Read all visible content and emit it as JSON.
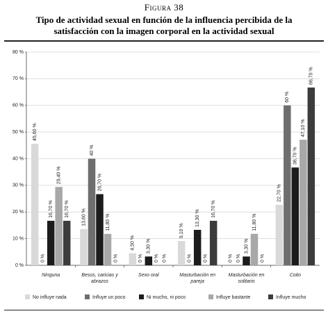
{
  "chart_data": {
    "type": "bar",
    "figure": "Figura 38",
    "title": "Tipo de actividad sexual en función de la influencia percibida de la satisfacción con la imagen corporal en la actividad sexual",
    "categories": [
      "Ninguna",
      "Besos, caricias y abrazos",
      "Sexo oral",
      "Masturbación en pareja",
      "Masturbación en solitario",
      "Coito"
    ],
    "series": [
      {
        "name": "No influye nada",
        "color": "#d9d9d9",
        "values": [
          45.6,
          13.6,
          4.5,
          9.1,
          0,
          22.7
        ],
        "value_labels": [
          "45,60 %",
          "13,60 %",
          "4,50 %",
          "9,10 %",
          "0 %",
          "22,70 %"
        ]
      },
      {
        "name": "Influye un poco",
        "color": "#6e6e6e",
        "values": [
          0,
          40,
          0,
          0,
          0,
          60
        ],
        "value_labels": [
          "0 %",
          "40 %",
          "0 %",
          "0 %",
          "0 %",
          "60 %"
        ]
      },
      {
        "name": "Ni mucho, ni poco",
        "color": "#1c1c1c",
        "values": [
          16.7,
          26.7,
          3.3,
          13.3,
          3.3,
          36.7
        ],
        "value_labels": [
          "16,70 %",
          "26,70 %",
          "3,30 %",
          "13,30 %",
          "3,30 %",
          "36,70 %"
        ]
      },
      {
        "name": "Influye bastante",
        "color": "#a8a8a8",
        "values": [
          29.4,
          11.8,
          0,
          0,
          11.8,
          47.1
        ],
        "value_labels": [
          "29,40 %",
          "11,80 %",
          "0 %",
          "0 %",
          "11,80 %",
          "47,10 %"
        ]
      },
      {
        "name": "Influye mucho",
        "color": "#3c3c3c",
        "values": [
          16.7,
          0,
          0,
          16.7,
          0,
          66.7
        ],
        "value_labels": [
          "16,70 %",
          "0 %",
          "0 %",
          "16,70 %",
          "0 %",
          "66,70 %"
        ]
      }
    ],
    "ylim": [
      0,
      80
    ],
    "yticks": [
      {
        "value": 0,
        "label": "0 %"
      },
      {
        "value": 10,
        "label": "10 %"
      },
      {
        "value": 20,
        "label": "20 %"
      },
      {
        "value": 30,
        "label": "30 %"
      },
      {
        "value": 40,
        "label": "40 %"
      },
      {
        "value": 50,
        "label": "50 %"
      },
      {
        "value": 60,
        "label": "60 %"
      },
      {
        "value": 70,
        "label": "70 %"
      },
      {
        "value": 80,
        "label": "80 %"
      }
    ],
    "grid": true,
    "legend": "bottom"
  }
}
